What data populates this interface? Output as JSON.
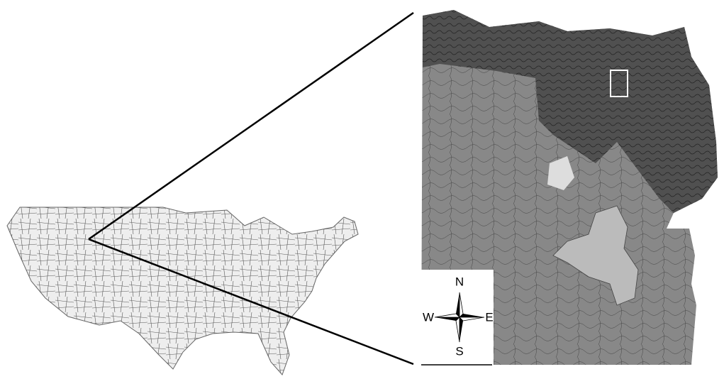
{
  "compass": {
    "north": "N",
    "south": "S",
    "east": "E",
    "west": "W"
  }
}
